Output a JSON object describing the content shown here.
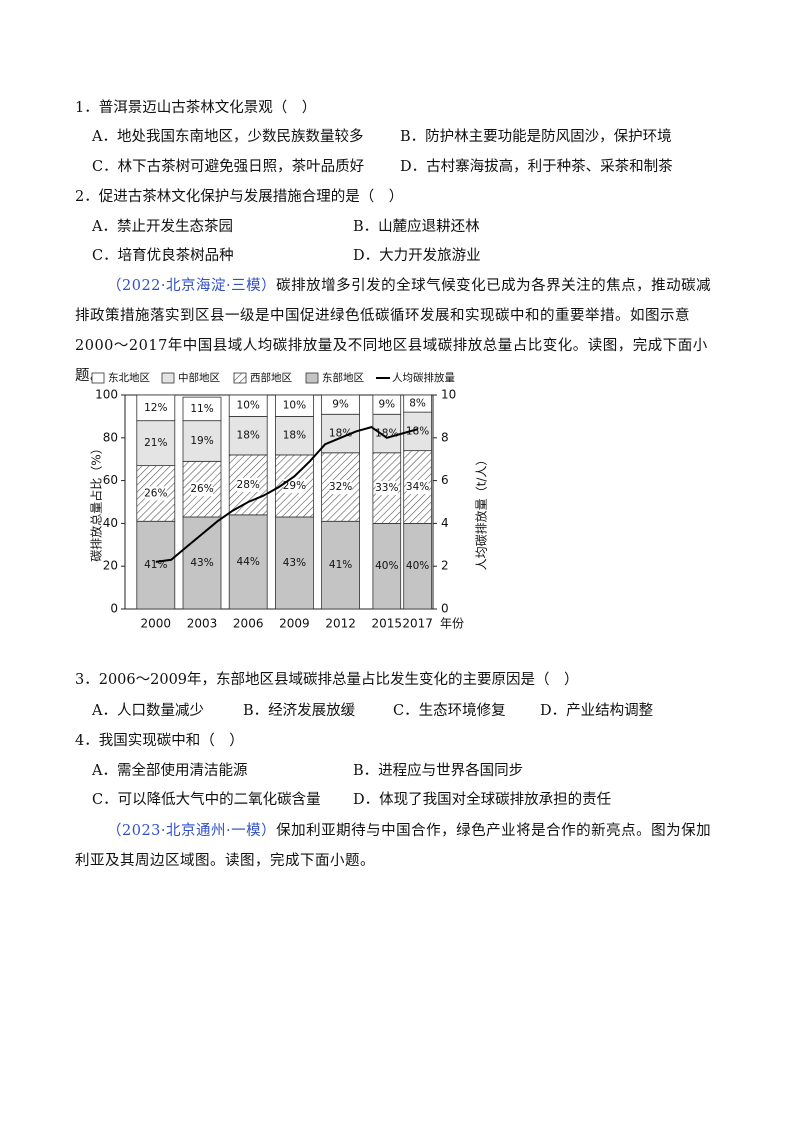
{
  "questions": [
    {
      "number": "1．",
      "stem": "普洱景迈山古茶林文化景观（　）",
      "options": [
        "A．地处我国东南地区，少数民族数量较多",
        "B．防护林主要功能是防风固沙，保护环境",
        "C．林下古茶树可避免强日照，茶叶品质好",
        "D．古村寨海拔高，利于种茶、采茶和制茶"
      ]
    },
    {
      "number": "2．",
      "stem": "促进古茶林文化保护与发展措施合理的是（　）",
      "options": [
        "A．禁止开发生态茶园",
        "B．山麓应退耕还林",
        "C．培育优良茶树品种",
        "D．大力开发旅游业"
      ]
    },
    {
      "number": "3．",
      "stem": "2006～2009年，东部地区县域碳排总量占比发生变化的主要原因是（　）",
      "options": [
        "A．人口数量减少",
        "B．经济发展放缓",
        "C．生态环境修复",
        "D．产业结构调整"
      ]
    },
    {
      "number": "4．",
      "stem": "我国实现碳中和（　）",
      "options": [
        "A．需全部使用清洁能源",
        "B．进程应与世界各国同步",
        "C．可以降低大气中的二氧化碳含量",
        "D．体现了我国对全球碳排放承担的责任"
      ]
    }
  ],
  "passages": [
    {
      "source": "（2022·北京海淀·三模）",
      "text": "碳排放增多引发的全球气候变化已成为各界关注的焦点，推动碳减排政策措施落实到区县一级是中国促进绿色低碳循环发展和实现碳中和的重要举措。如图示意2000～2017年中国县域人均碳排放量及不同地区县域碳排放总量占比变化。读图，完成下面小题。"
    },
    {
      "source": "（2023·北京通州·一模）",
      "text": "保加利亚期待与中国合作，绿色产业将是合作的新亮点。图为保加利亚及其周边区域图。读图，完成下面小题。"
    }
  ],
  "chart_data": {
    "type": "stacked-bar-line",
    "x_label": "年份",
    "y_label": "碳排放总量占比（%）",
    "y2_label": "人均碳排放量（t/人）",
    "x": [
      2000,
      2003,
      2006,
      2009,
      2012,
      2015,
      2017
    ],
    "xlim": [
      1998,
      2018
    ],
    "ylim": [
      0,
      100
    ],
    "yticks": [
      0,
      20,
      40,
      60,
      80,
      100
    ],
    "y2lim": [
      0,
      10
    ],
    "y2ticks": [
      0,
      2,
      4,
      6,
      8,
      10
    ],
    "series": [
      {
        "name": "东北地区",
        "color": "#ffffff",
        "values": [
          12,
          11,
          10,
          10,
          9,
          9,
          8
        ],
        "value_labels": [
          "12%",
          "11%",
          "10%",
          "10%",
          "9%",
          "9%",
          "8%"
        ]
      },
      {
        "name": "中部地区",
        "color": "#e4e4e4",
        "values": [
          21,
          19,
          18,
          18,
          18,
          18,
          18
        ],
        "value_labels": [
          "21%",
          "19%",
          "18%",
          "18%",
          "18%",
          "18%",
          "18%"
        ]
      },
      {
        "name": "西部地区",
        "color": "#ffffff",
        "pattern": "hatch",
        "values": [
          26,
          26,
          28,
          29,
          32,
          33,
          34
        ],
        "value_labels": [
          "26%",
          "26%",
          "28%",
          "29%",
          "32%",
          "33%",
          "34%"
        ]
      },
      {
        "name": "东部地区",
        "color": "#c4c4c4",
        "values": [
          41,
          43,
          44,
          43,
          41,
          40,
          40
        ],
        "value_labels": [
          "41%",
          "43%",
          "44%",
          "43%",
          "41%",
          "40%",
          "40%"
        ]
      },
      {
        "name": "人均碳排放量",
        "color": "#000000",
        "kind": "line",
        "axis": "y2",
        "x": [
          2000,
          2001,
          2002,
          2003,
          2004,
          2005,
          2006,
          2007,
          2008,
          2009,
          2010,
          2011,
          2012,
          2013,
          2014,
          2015,
          2016,
          2017
        ],
        "values": [
          2.2,
          2.3,
          2.9,
          3.5,
          4.1,
          4.6,
          5.0,
          5.3,
          5.7,
          6.2,
          6.9,
          7.7,
          8.0,
          8.3,
          8.5,
          8.0,
          8.2,
          8.4
        ]
      }
    ]
  }
}
